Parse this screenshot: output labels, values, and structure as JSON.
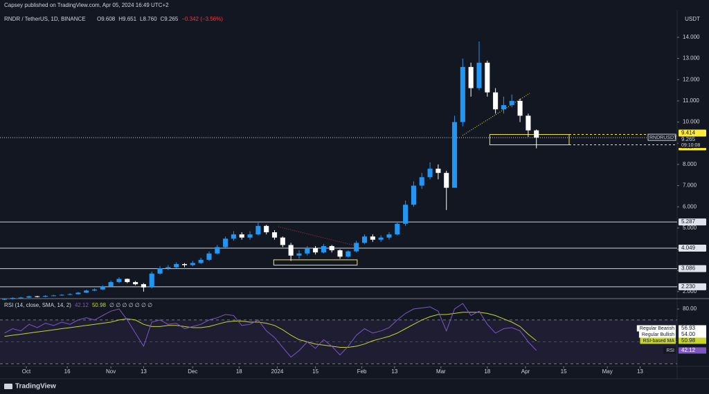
{
  "header": "Capsey published on TradingView.com, Apr 05, 2024 16:49 UTC+2",
  "chart_data": {
    "type": "candlestick",
    "title": "RNDR / TetherUS, 1D, BINANCE",
    "ohlc_header": [
      "O9.608",
      "H9.651",
      "L8.760",
      "C9.265",
      "−0.342 (−3.56%)"
    ],
    "currency": "USDT",
    "symbol_label": "RNDRUSDT",
    "countdown": "09:10:08",
    "up_color": "#2196f3",
    "down_color": "#ffffff",
    "grid": false,
    "open": [
      1.62,
      1.65,
      1.7,
      1.72,
      1.78,
      1.76,
      1.8,
      1.82,
      1.85,
      1.88,
      1.95,
      2.05,
      2.1,
      2.25,
      2.45,
      2.6,
      2.45,
      2.35,
      2.2,
      2.85,
      3.1,
      3.15,
      3.3,
      3.25,
      3.35,
      3.5,
      3.8,
      4.1,
      4.5,
      4.7,
      4.55,
      4.7,
      5.1,
      4.8,
      4.55,
      4.2,
      3.7,
      3.8,
      4.05,
      3.85,
      4.15,
      3.95,
      3.65,
      3.9,
      4.3,
      4.6,
      4.45,
      4.55,
      4.7,
      5.2,
      6.1,
      7.0,
      7.4,
      7.8,
      7.6,
      6.9,
      10.0,
      12.6,
      11.6,
      12.8,
      11.4,
      10.6,
      10.8,
      11.0,
      10.3,
      9.608
    ],
    "high": [
      1.68,
      1.73,
      1.75,
      1.81,
      1.8,
      1.83,
      1.85,
      1.88,
      1.92,
      1.99,
      2.09,
      2.15,
      2.3,
      2.52,
      2.68,
      2.62,
      2.5,
      2.4,
      2.95,
      3.2,
      3.25,
      3.38,
      3.35,
      3.45,
      3.6,
      3.9,
      4.2,
      4.6,
      4.85,
      4.8,
      4.85,
      5.25,
      5.15,
      4.9,
      4.6,
      4.3,
      3.95,
      4.15,
      4.15,
      4.25,
      4.2,
      4.0,
      3.95,
      4.4,
      4.7,
      4.7,
      4.65,
      4.8,
      5.3,
      6.3,
      7.2,
      7.6,
      8.1,
      8.0,
      7.7,
      10.3,
      13.0,
      12.8,
      13.8,
      12.9,
      11.6,
      11.2,
      11.3,
      11.1,
      10.4,
      9.651
    ],
    "low": [
      1.6,
      1.63,
      1.68,
      1.7,
      1.73,
      1.74,
      1.78,
      1.8,
      1.83,
      1.86,
      1.93,
      2.02,
      2.07,
      2.22,
      2.4,
      2.4,
      2.3,
      2.0,
      2.15,
      2.8,
      3.02,
      3.1,
      3.15,
      3.2,
      3.3,
      3.45,
      3.75,
      4.05,
      4.4,
      4.45,
      4.45,
      4.65,
      4.7,
      4.45,
      4.1,
      3.45,
      3.55,
      3.7,
      3.75,
      3.8,
      3.85,
      3.55,
      3.6,
      3.85,
      4.25,
      4.35,
      4.35,
      4.45,
      4.65,
      5.1,
      6.0,
      6.85,
      7.3,
      7.3,
      5.85,
      6.9,
      9.8,
      11.2,
      11.5,
      11.2,
      10.4,
      10.4,
      10.7,
      10.0,
      9.3,
      8.76
    ],
    "close": [
      1.65,
      1.7,
      1.72,
      1.78,
      1.76,
      1.8,
      1.82,
      1.85,
      1.88,
      1.95,
      2.05,
      2.1,
      2.25,
      2.45,
      2.6,
      2.45,
      2.35,
      2.2,
      2.85,
      3.1,
      3.15,
      3.3,
      3.25,
      3.35,
      3.5,
      3.8,
      4.1,
      4.5,
      4.7,
      4.55,
      4.7,
      5.1,
      4.8,
      4.55,
      4.2,
      3.7,
      3.8,
      4.05,
      3.85,
      4.15,
      3.95,
      3.65,
      3.9,
      4.3,
      4.6,
      4.45,
      4.55,
      4.7,
      5.2,
      6.1,
      7.0,
      7.4,
      7.8,
      7.6,
      6.9,
      10.0,
      12.6,
      11.6,
      12.8,
      11.4,
      10.6,
      10.8,
      11.0,
      10.3,
      9.608,
      9.265
    ],
    "xlim": [
      -0.55,
      82.2
    ],
    "xticks": [
      {
        "value": 2.667,
        "label": "Oct"
      },
      {
        "value": 7.667,
        "label": "16"
      },
      {
        "value": 13,
        "label": "Nov"
      },
      {
        "value": 17,
        "label": "13"
      },
      {
        "value": 23,
        "label": "Dec"
      },
      {
        "value": 28.667,
        "label": "18"
      },
      {
        "value": 33.333,
        "label": "2024"
      },
      {
        "value": 38,
        "label": "15"
      },
      {
        "value": 43.667,
        "label": "Feb"
      },
      {
        "value": 47.667,
        "label": "13"
      },
      {
        "value": 53.333,
        "label": "Mar"
      },
      {
        "value": 59,
        "label": "18"
      },
      {
        "value": 63.667,
        "label": "Apr"
      },
      {
        "value": 68.333,
        "label": "15"
      },
      {
        "value": 73.667,
        "label": "May"
      },
      {
        "value": 77.667,
        "label": "13"
      }
    ],
    "ylim": [
      1.67,
      15.27
    ],
    "yticks": [
      {
        "value": 14,
        "label": "14.000"
      },
      {
        "value": 13,
        "label": "13.000"
      },
      {
        "value": 12,
        "label": "12.000"
      },
      {
        "value": 11,
        "label": "11.000"
      },
      {
        "value": 10,
        "label": "10.000"
      },
      {
        "value": 9,
        "label": "9.000"
      },
      {
        "value": 8,
        "label": "8.000"
      },
      {
        "value": 7,
        "label": "7.000"
      },
      {
        "value": 6,
        "label": "6.000"
      },
      {
        "value": 5,
        "label": "5.000"
      },
      {
        "value": 4,
        "label": "4.000"
      },
      {
        "value": 3,
        "label": "3.000"
      },
      {
        "value": 2,
        "label": "2.000"
      }
    ],
    "last_price": 9.265,
    "levels": [
      5.287,
      4.049,
      3.086,
      {
        "value": 2.23,
        "label": "2.230"
      }
    ],
    "zones": [
      {
        "x": [
          32.9,
          43.1
        ],
        "y": [
          3.25,
          3.5
        ]
      },
      {
        "x": [
          59.3,
          69
        ],
        "y": [
          8.927,
          9.414
        ]
      }
    ],
    "zone_color": "#ffeb3b",
    "rsi": {
      "type": "line",
      "title": "RSI (14, close, SMA, 14, 2)",
      "placeholders": "∅ ∅ ∅ ∅ ∅ ∅ ∅",
      "ylim": [
        27.6,
        89.5
      ],
      "yticks": [
        {
          "value": 80,
          "label": "80.00"
        }
      ],
      "bands": [
        70,
        50,
        30
      ],
      "series": [
        {
          "name": "RSI",
          "color": "#7e57c2",
          "values": [
            58,
            62,
            60,
            66,
            63,
            67,
            65,
            68,
            66,
            70,
            72,
            70,
            74,
            78,
            80,
            70,
            58,
            46,
            68,
            70,
            66,
            67,
            62,
            64,
            66,
            70,
            72,
            75,
            74,
            65,
            66,
            70,
            60,
            54,
            45,
            36,
            42,
            50,
            44,
            52,
            46,
            38,
            46,
            56,
            62,
            58,
            60,
            63,
            70,
            76,
            80,
            81,
            82,
            78,
            60,
            80,
            85,
            74,
            78,
            66,
            58,
            62,
            63,
            60,
            50,
            42.12
          ]
        },
        {
          "name": "RSI-based MA",
          "color": "#c8d62b",
          "values": [
            55,
            56,
            57,
            58,
            59,
            60,
            61,
            62,
            63,
            64,
            65,
            66,
            67,
            68,
            70,
            71,
            70,
            66,
            64,
            64,
            65,
            65,
            64,
            63,
            63,
            64,
            66,
            68,
            69,
            69,
            68,
            68,
            67,
            65,
            61,
            56,
            52,
            50,
            48,
            47,
            46,
            45,
            45,
            46,
            48,
            51,
            53,
            55,
            58,
            62,
            66,
            70,
            73,
            75,
            75,
            76,
            77,
            77,
            77,
            76,
            74,
            71,
            68,
            64,
            57,
            50.98
          ]
        }
      ],
      "divergence": [
        {
          "name": "Regular Bearish",
          "value": 56.93
        },
        {
          "name": "Regular Bullish",
          "value": 54,
          "label": "54.00"
        }
      ]
    }
  },
  "footer": "TradingView"
}
